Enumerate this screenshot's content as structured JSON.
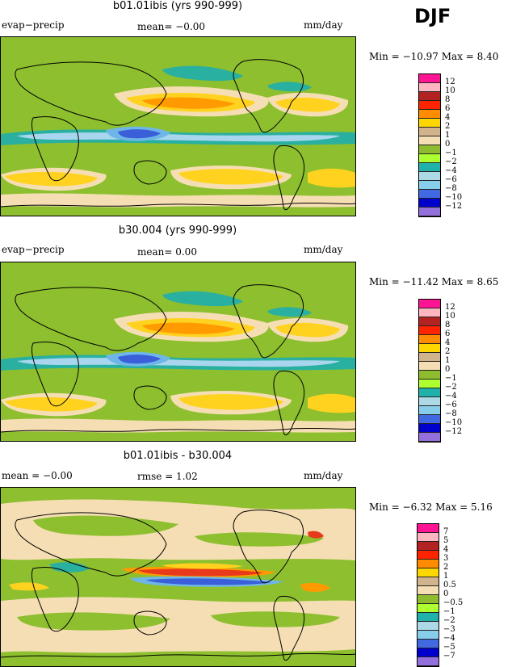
{
  "season": "DJF",
  "panels": [
    {
      "title": "b01.01ibis (yrs 990-999)",
      "left_label": "evap−precip",
      "center_label": "mean=  −0.00",
      "right_label": "mm/day",
      "minmax": "Min = −10.97  Max =    8.40",
      "legend": {
        "labels": [
          "12",
          "10",
          "8",
          "6",
          "4",
          "2",
          "1",
          "0",
          "−1",
          "−2",
          "−4",
          "−6",
          "−8",
          "−10",
          "−12"
        ],
        "colors": [
          "#ff1493",
          "#ffb6c1",
          "#b22222",
          "#ff2400",
          "#ff8c00",
          "#ffd700",
          "#d2b48c",
          "#f5deb3",
          "#8fbc2f",
          "#adff2f",
          "#20b2aa",
          "#add8e6",
          "#87ceeb",
          "#4169e1",
          "#0000cd",
          "#9370db"
        ]
      }
    },
    {
      "title": "b30.004 (yrs 990-999)",
      "left_label": "evap−precip",
      "center_label": "mean=    0.00",
      "right_label": "mm/day",
      "minmax": "Min = −11.42  Max =    8.65",
      "legend": {
        "labels": [
          "12",
          "10",
          "8",
          "6",
          "4",
          "2",
          "1",
          "0",
          "−1",
          "−2",
          "−4",
          "−6",
          "−8",
          "−10",
          "−12"
        ],
        "colors": [
          "#ff1493",
          "#ffb6c1",
          "#b22222",
          "#ff2400",
          "#ff8c00",
          "#ffd700",
          "#d2b48c",
          "#f5deb3",
          "#8fbc2f",
          "#adff2f",
          "#20b2aa",
          "#add8e6",
          "#87ceeb",
          "#4169e1",
          "#0000cd",
          "#9370db"
        ]
      }
    },
    {
      "title": "b01.01ibis - b30.004",
      "left_label": "mean =   −0.00",
      "center_label": "rmse =    1.02",
      "right_label": "mm/day",
      "minmax": "Min =   −6.32  Max =    5.16",
      "legend": {
        "labels": [
          "7",
          "5",
          "4",
          "3",
          "2",
          "1",
          "0.5",
          "0",
          "−0.5",
          "−1",
          "−2",
          "−3",
          "−4",
          "−5",
          "−7"
        ],
        "colors": [
          "#ff1493",
          "#ffb6c1",
          "#b22222",
          "#ff2400",
          "#ff8c00",
          "#ffd700",
          "#d2b48c",
          "#f5deb3",
          "#8fbc2f",
          "#adff2f",
          "#20b2aa",
          "#add8e6",
          "#87ceeb",
          "#4169e1",
          "#0000cd",
          "#9370db"
        ]
      }
    }
  ]
}
